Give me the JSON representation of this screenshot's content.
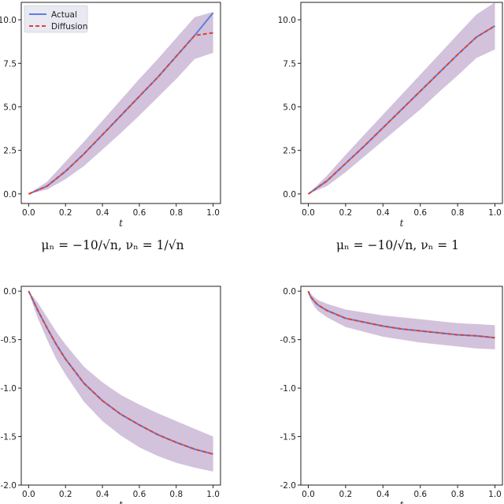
{
  "colors": {
    "actual": "#5b7fe0",
    "diffusion": "#d9443a",
    "band": "#c7a3c5",
    "band_blue": "#aebfe8",
    "frame": "#222222"
  },
  "captions": [
    "μₙ = −10/√n,  νₙ = 1/√n",
    "μₙ = −10/√n,  νₙ = 1"
  ],
  "chart_data": [
    {
      "type": "line",
      "title": "",
      "xlabel": "t",
      "ylabel": "",
      "xlim": [
        -0.04,
        1.04
      ],
      "ylim": [
        -0.55,
        11.0
      ],
      "xticks": [
        "0.0",
        "0.2",
        "0.4",
        "0.6",
        "0.8",
        "1.0"
      ],
      "yticks": [
        "0.0",
        "2.5",
        "5.0",
        "7.5",
        "10.0"
      ],
      "legend": {
        "position": "top-left",
        "entries": [
          "Actual",
          "Diffusion"
        ]
      },
      "x": [
        0,
        0.1,
        0.2,
        0.3,
        0.4,
        0.5,
        0.6,
        0.7,
        0.8,
        0.9,
        1.0
      ],
      "series": [
        {
          "name": "Actual",
          "values": [
            0,
            0.45,
            1.3,
            2.3,
            3.4,
            4.5,
            5.6,
            6.7,
            7.9,
            9.1,
            10.4
          ],
          "band": [
            [
              0,
              0,
              0
            ],
            [
              0.1,
              0.25,
              0.7
            ],
            [
              0.2,
              0.85,
              1.85
            ],
            [
              0.3,
              1.6,
              3.0
            ],
            [
              0.4,
              2.55,
              4.2
            ],
            [
              0.5,
              3.5,
              5.4
            ],
            [
              0.6,
              4.5,
              6.6
            ],
            [
              0.7,
              5.55,
              7.75
            ],
            [
              0.8,
              6.6,
              8.95
            ],
            [
              0.9,
              7.75,
              10.15
            ],
            [
              1.0,
              8.1,
              10.45
            ]
          ]
        },
        {
          "name": "Diffusion",
          "values": [
            0,
            0.45,
            1.3,
            2.3,
            3.4,
            4.5,
            5.6,
            6.7,
            7.9,
            9.1,
            9.25
          ]
        }
      ]
    },
    {
      "type": "line",
      "title": "",
      "xlabel": "t",
      "ylabel": "",
      "xlim": [
        -0.04,
        1.04
      ],
      "ylim": [
        -0.55,
        11.0
      ],
      "xticks": [
        "0.0",
        "0.2",
        "0.4",
        "0.6",
        "0.8",
        "1.0"
      ],
      "yticks": [
        "0.0",
        "2.5",
        "5.0",
        "7.5",
        "10.0"
      ],
      "x": [
        0,
        0.1,
        0.2,
        0.3,
        0.4,
        0.5,
        0.6,
        0.7,
        0.8,
        0.9,
        1.0
      ],
      "series": [
        {
          "name": "Actual",
          "values": [
            0,
            0.75,
            1.75,
            2.75,
            3.8,
            4.85,
            5.9,
            6.95,
            8.0,
            9.0,
            9.65
          ],
          "band": [
            [
              0,
              0,
              0
            ],
            [
              0.1,
              0.45,
              1.05
            ],
            [
              0.2,
              1.25,
              2.25
            ],
            [
              0.3,
              2.15,
              3.4
            ],
            [
              0.4,
              3.05,
              4.55
            ],
            [
              0.5,
              3.95,
              5.7
            ],
            [
              0.6,
              4.85,
              6.85
            ],
            [
              0.7,
              5.85,
              8.0
            ],
            [
              0.8,
              6.8,
              9.15
            ],
            [
              0.9,
              7.8,
              10.3
            ],
            [
              1.0,
              8.3,
              11.0
            ]
          ]
        },
        {
          "name": "Diffusion",
          "values": [
            0,
            0.75,
            1.75,
            2.75,
            3.8,
            4.85,
            5.9,
            6.95,
            8.0,
            9.0,
            9.65
          ]
        }
      ]
    },
    {
      "type": "line",
      "title": "",
      "xlabel": "t",
      "ylabel": "",
      "xlim": [
        -0.04,
        1.04
      ],
      "ylim": [
        -2.0,
        0.05
      ],
      "xticks": [
        "0.0",
        "0.2",
        "0.4",
        "0.6",
        "0.8",
        "1.0"
      ],
      "yticks": [
        "0.0",
        "-0.5",
        "-1.0",
        "-1.5",
        "-2.0"
      ],
      "x": [
        0,
        0.02,
        0.05,
        0.1,
        0.15,
        0.2,
        0.3,
        0.4,
        0.5,
        0.6,
        0.7,
        0.8,
        0.9,
        1.0
      ],
      "series": [
        {
          "name": "Actual",
          "values": [
            0,
            -0.08,
            -0.2,
            -0.38,
            -0.55,
            -0.7,
            -0.95,
            -1.13,
            -1.27,
            -1.38,
            -1.48,
            -1.56,
            -1.63,
            -1.68
          ],
          "band": [
            [
              0,
              0,
              0
            ],
            [
              0.02,
              -0.12,
              -0.05
            ],
            [
              0.05,
              -0.28,
              -0.12
            ],
            [
              0.1,
              -0.5,
              -0.27
            ],
            [
              0.15,
              -0.7,
              -0.42
            ],
            [
              0.2,
              -0.86,
              -0.55
            ],
            [
              0.3,
              -1.14,
              -0.78
            ],
            [
              0.4,
              -1.34,
              -0.94
            ],
            [
              0.5,
              -1.49,
              -1.07
            ],
            [
              0.6,
              -1.61,
              -1.17
            ],
            [
              0.7,
              -1.7,
              -1.26
            ],
            [
              0.8,
              -1.77,
              -1.34
            ],
            [
              0.9,
              -1.82,
              -1.42
            ],
            [
              1.0,
              -1.86,
              -1.5
            ]
          ]
        },
        {
          "name": "Diffusion",
          "values": [
            0,
            -0.08,
            -0.2,
            -0.38,
            -0.55,
            -0.7,
            -0.95,
            -1.13,
            -1.27,
            -1.38,
            -1.48,
            -1.56,
            -1.63,
            -1.68
          ]
        }
      ]
    },
    {
      "type": "line",
      "title": "",
      "xlabel": "t",
      "ylabel": "",
      "xlim": [
        -0.04,
        1.04
      ],
      "ylim": [
        -2.0,
        0.05
      ],
      "xticks": [
        "0.0",
        "0.2",
        "0.4",
        "0.6",
        "0.8",
        "1.0"
      ],
      "yticks": [
        "0.0",
        "-0.5",
        "-1.0",
        "-1.5",
        "-2.0"
      ],
      "x": [
        0,
        0.01,
        0.03,
        0.05,
        0.1,
        0.15,
        0.2,
        0.3,
        0.4,
        0.5,
        0.6,
        0.7,
        0.8,
        0.9,
        1.0
      ],
      "series": [
        {
          "name": "Actual",
          "values": [
            0,
            -0.05,
            -0.1,
            -0.14,
            -0.2,
            -0.24,
            -0.28,
            -0.32,
            -0.36,
            -0.39,
            -0.41,
            -0.43,
            -0.45,
            -0.46,
            -0.48
          ],
          "band": [
            [
              0,
              0,
              0
            ],
            [
              0.01,
              -0.08,
              -0.02
            ],
            [
              0.03,
              -0.15,
              -0.06
            ],
            [
              0.05,
              -0.2,
              -0.09
            ],
            [
              0.1,
              -0.27,
              -0.13
            ],
            [
              0.15,
              -0.32,
              -0.16
            ],
            [
              0.2,
              -0.37,
              -0.19
            ],
            [
              0.3,
              -0.42,
              -0.22
            ],
            [
              0.4,
              -0.47,
              -0.25
            ],
            [
              0.5,
              -0.5,
              -0.27
            ],
            [
              0.6,
              -0.53,
              -0.29
            ],
            [
              0.7,
              -0.55,
              -0.31
            ],
            [
              0.8,
              -0.57,
              -0.33
            ],
            [
              0.9,
              -0.59,
              -0.34
            ],
            [
              1.0,
              -0.6,
              -0.35
            ]
          ]
        },
        {
          "name": "Diffusion",
          "values": [
            0,
            -0.05,
            -0.1,
            -0.14,
            -0.2,
            -0.24,
            -0.28,
            -0.32,
            -0.36,
            -0.39,
            -0.41,
            -0.43,
            -0.45,
            -0.46,
            -0.48
          ]
        }
      ]
    }
  ]
}
